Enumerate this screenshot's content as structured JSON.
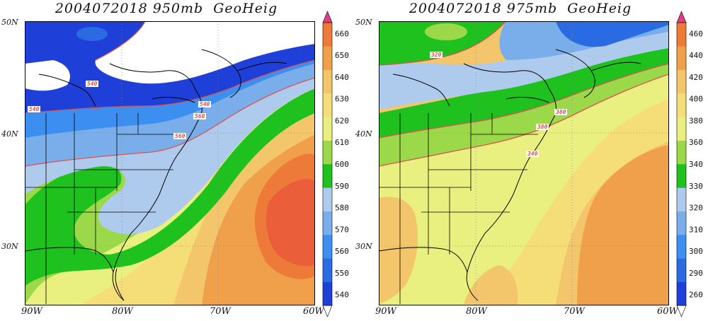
{
  "left": {
    "title": "2004072018 950mb  GeoHeig",
    "lat_labels": [
      "50N",
      "40N",
      "30N"
    ],
    "lon_labels": [
      "90W",
      "80W",
      "70W",
      "60W"
    ],
    "colorbar": {
      "levels": [
        "540",
        "550",
        "560",
        "570",
        "580",
        "590",
        "600",
        "610",
        "620",
        "630",
        "640",
        "650",
        "660"
      ],
      "colors": [
        "#1e3fd8",
        "#2a6ae2",
        "#3c8ff0",
        "#7aaeea",
        "#aecbee",
        "#1ec11e",
        "#9bd84a",
        "#eaf080",
        "#f5dd78",
        "#f4c66c",
        "#f0a04a",
        "#ee7a3a",
        "#e84d3a",
        "#e03c8a"
      ]
    },
    "contour_labels": [
      "540",
      "540",
      "540",
      "560",
      "560"
    ]
  },
  "right": {
    "title": "2004072018 975mb  GeoHeig",
    "lat_labels": [
      "50N",
      "40N",
      "30N"
    ],
    "lon_labels": [
      "90W",
      "80W",
      "70W",
      "60W"
    ],
    "colorbar": {
      "levels": [
        "260",
        "290",
        "300",
        "310",
        "320",
        "330",
        "340",
        "360",
        "380",
        "400",
        "420",
        "440",
        "460"
      ],
      "colors": [
        "#1e3fd8",
        "#2a6ae2",
        "#3c8ff0",
        "#7aaeea",
        "#aecbee",
        "#1ec11e",
        "#9bd84a",
        "#eaf080",
        "#f5dd78",
        "#f4c66c",
        "#f0a04a",
        "#ee7a3a",
        "#e84d3a",
        "#e03c8a"
      ]
    },
    "contour_labels": [
      "320",
      "380",
      "380",
      "340"
    ]
  }
}
